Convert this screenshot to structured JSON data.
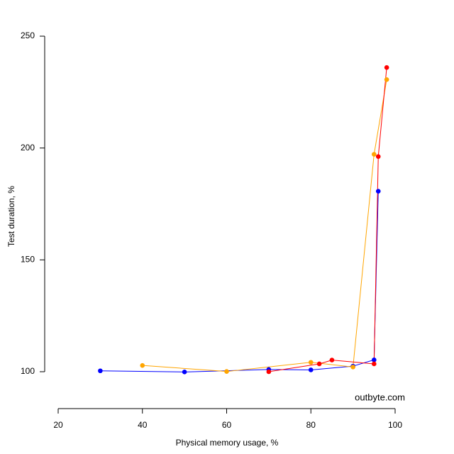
{
  "chart_data": {
    "type": "line",
    "x_label": "Physical memory usage, %",
    "y_label": "Test duration, %",
    "annotation": "outbyte.com",
    "xlim": [
      20,
      100
    ],
    "xticks": [
      20,
      40,
      60,
      80,
      100
    ],
    "ylim": [
      100,
      250
    ],
    "yticks": [
      100,
      150,
      200,
      250
    ],
    "series": [
      {
        "color": "#0000ff",
        "x": [
          30,
          50,
          70,
          80,
          90,
          95,
          96
        ],
        "values": [
          100.4,
          99.9,
          101.0,
          100.8,
          102.5,
          105.3,
          180.7
        ]
      },
      {
        "color": "#ffa500",
        "x": [
          40,
          60,
          80,
          90,
          95,
          98
        ],
        "values": [
          102.8,
          100.1,
          104.2,
          102.1,
          197.2,
          230.6
        ]
      },
      {
        "color": "#ff0000",
        "x": [
          70,
          82,
          85,
          95,
          96,
          98
        ],
        "values": [
          100.0,
          103.5,
          105.2,
          103.5,
          196.2,
          236.0
        ]
      }
    ]
  }
}
